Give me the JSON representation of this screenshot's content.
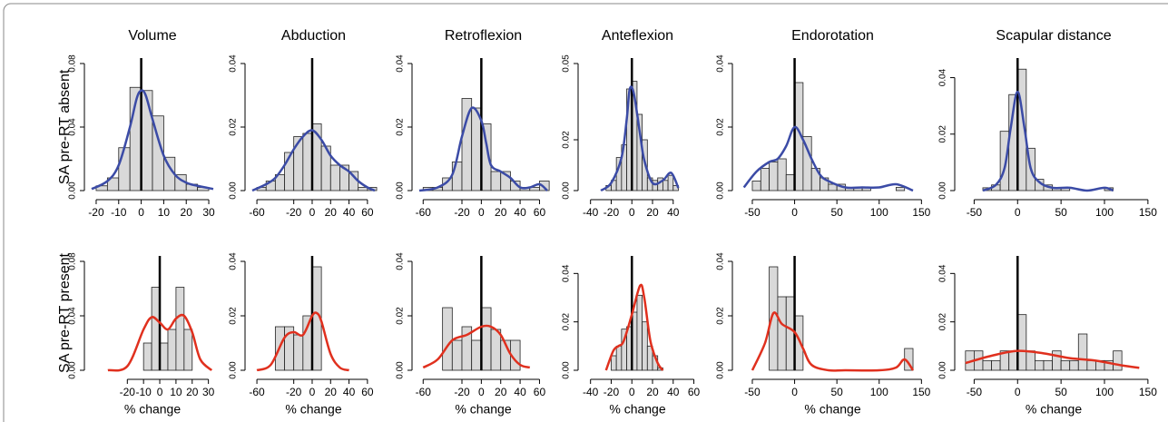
{
  "row_labels": [
    "SA pre-RT absent",
    "SA pre-RT present"
  ],
  "chart_data": [
    {
      "type": "histogram",
      "title": "Volume",
      "bins": [
        -20,
        -15,
        -10,
        -5,
        0,
        5,
        10,
        15,
        20,
        25,
        30
      ],
      "values": [
        0.003,
        0.008,
        0.027,
        0.065,
        0.063,
        0.047,
        0.021,
        0.01,
        0.004,
        0.002
      ],
      "density": {
        "x": [
          -22,
          -15,
          -10,
          -5,
          -2,
          0,
          2,
          5,
          10,
          15,
          20,
          25,
          32
        ],
        "y": [
          0.001,
          0.006,
          0.016,
          0.04,
          0.058,
          0.063,
          0.06,
          0.045,
          0.022,
          0.01,
          0.005,
          0.003,
          0.001
        ]
      },
      "color": "#3b4ba6",
      "vline": 0,
      "xlim": [
        -22,
        32
      ],
      "xticks": [
        -20,
        -10,
        0,
        10,
        20,
        30
      ],
      "ylim": [
        0,
        0.08
      ],
      "yticks": [
        {
          "value": 0,
          "label": "0.00"
        },
        0.04,
        0.08
      ]
    },
    {
      "type": "histogram",
      "title": "Abduction",
      "bins": [
        -60,
        -50,
        -40,
        -30,
        -20,
        -10,
        0,
        10,
        20,
        30,
        40,
        50,
        60,
        70
      ],
      "values": [
        0.001,
        0.003,
        0.005,
        0.012,
        0.017,
        0.018,
        0.021,
        0.014,
        0.008,
        0.008,
        0.006,
        0.001,
        0.001
      ],
      "density": {
        "x": [
          -65,
          -50,
          -40,
          -30,
          -20,
          -10,
          0,
          10,
          20,
          30,
          40,
          50,
          60,
          68
        ],
        "y": [
          0,
          0.002,
          0.004,
          0.008,
          0.013,
          0.017,
          0.019,
          0.016,
          0.011,
          0.008,
          0.006,
          0.003,
          0.001,
          0
        ]
      },
      "color": "#3b4ba6",
      "vline": 0,
      "xlim": [
        -65,
        68
      ],
      "xticks": [
        -60,
        -20,
        0,
        20,
        40,
        60
      ],
      "ylim": [
        0,
        0.04
      ],
      "yticks": [
        {
          "value": 0,
          "label": "0.00"
        },
        0.02,
        0.04
      ]
    },
    {
      "type": "histogram",
      "title": "Retroflexion",
      "bins": [
        -60,
        -50,
        -40,
        -30,
        -20,
        -10,
        0,
        10,
        20,
        30,
        40,
        50,
        60,
        70
      ],
      "values": [
        0.001,
        0.001,
        0.004,
        0.009,
        0.029,
        0.026,
        0.021,
        0.006,
        0.006,
        0.003,
        0.001,
        0.001,
        0.003
      ],
      "density": {
        "x": [
          -64,
          -45,
          -30,
          -20,
          -10,
          0,
          5,
          10,
          20,
          30,
          40,
          50,
          60,
          68
        ],
        "y": [
          0,
          0.001,
          0.005,
          0.017,
          0.026,
          0.022,
          0.015,
          0.008,
          0.006,
          0.004,
          0.001,
          0.001,
          0.002,
          0
        ]
      },
      "color": "#3b4ba6",
      "vline": 0,
      "xlim": [
        -64,
        68
      ],
      "xticks": [
        -60,
        -20,
        0,
        20,
        40,
        60
      ],
      "ylim": [
        0,
        0.04
      ],
      "yticks": [
        {
          "value": 0,
          "label": "0.00"
        },
        0.02,
        0.04
      ]
    },
    {
      "type": "histogram",
      "title": "Anteflexion",
      "bins": [
        -25,
        -20,
        -15,
        -10,
        -5,
        0,
        5,
        10,
        15,
        20,
        25,
        30,
        35,
        40,
        45
      ],
      "values": [
        0.002,
        0.004,
        0.013,
        0.018,
        0.04,
        0.043,
        0.03,
        0.02,
        0.005,
        0.004,
        0.005,
        0.004,
        0.006,
        0.002
      ],
      "density": {
        "x": [
          -30,
          -20,
          -10,
          -5,
          -2,
          2,
          8,
          12,
          20,
          30,
          38,
          45
        ],
        "y": [
          0,
          0.003,
          0.013,
          0.028,
          0.04,
          0.038,
          0.022,
          0.012,
          0.003,
          0.004,
          0.007,
          0.001
        ]
      },
      "color": "#3b4ba6",
      "vline": 0,
      "xlim": [
        -45,
        56
      ],
      "xticks": [
        -40,
        -20,
        0,
        20,
        40
      ],
      "ylim": [
        0,
        0.05
      ],
      "yticks": [
        {
          "value": 0,
          "label": "0.00"
        },
        0.02,
        0.05
      ]
    },
    {
      "type": "histogram",
      "title": "Endorotation",
      "bins": [
        -50,
        -40,
        -30,
        -20,
        -10,
        0,
        10,
        20,
        30,
        40,
        50,
        60,
        70,
        80,
        90,
        100,
        110,
        120,
        130,
        140
      ],
      "values": [
        0.003,
        0.007,
        0.009,
        0.01,
        0.005,
        0.034,
        0.017,
        0.007,
        0.004,
        0.002,
        0.002,
        0.001,
        0.001,
        0.001,
        0,
        0,
        0,
        0.001,
        0
      ],
      "density": {
        "x": [
          -60,
          -45,
          -30,
          -20,
          -10,
          0,
          10,
          20,
          30,
          40,
          60,
          80,
          100,
          120,
          140
        ],
        "y": [
          0.001,
          0.006,
          0.009,
          0.01,
          0.014,
          0.02,
          0.016,
          0.01,
          0.005,
          0.003,
          0.001,
          0.001,
          0.001,
          0.002,
          0
        ]
      },
      "color": "#3b4ba6",
      "vline": 0,
      "xlim": [
        -65,
        155
      ],
      "xticks": [
        -50,
        0,
        50,
        100,
        150
      ],
      "ylim": [
        0,
        0.04
      ],
      "yticks": [
        {
          "value": 0,
          "label": "0.00"
        },
        0.02,
        0.04
      ]
    },
    {
      "type": "histogram",
      "title": "Scapular distance",
      "bins": [
        -40,
        -30,
        -20,
        -10,
        0,
        10,
        20,
        30,
        40,
        50,
        60,
        70,
        80,
        90,
        100,
        110
      ],
      "values": [
        0.001,
        0.002,
        0.021,
        0.034,
        0.043,
        0.015,
        0.004,
        0.002,
        0.001,
        0.001,
        0,
        0,
        0,
        0,
        0.001
      ],
      "density": {
        "x": [
          -40,
          -25,
          -15,
          -8,
          0,
          8,
          15,
          25,
          40,
          60,
          80,
          100,
          110
        ],
        "y": [
          0,
          0.002,
          0.008,
          0.022,
          0.035,
          0.022,
          0.008,
          0.003,
          0.001,
          0.001,
          0,
          0.001,
          0
        ]
      },
      "color": "#3b4ba6",
      "vline": 0,
      "xlim": [
        -64,
        147
      ],
      "xticks": [
        -50,
        0,
        50,
        100,
        150
      ],
      "ylim": [
        0,
        0.045
      ],
      "yticks": [
        {
          "value": 0,
          "label": "0.00"
        },
        0.02,
        0.04
      ]
    },
    {
      "type": "histogram",
      "x_label": "% change",
      "bins": [
        -10,
        -5,
        0,
        5,
        10,
        15,
        20
      ],
      "values": [
        0.02,
        0.061,
        0.02,
        0.03,
        0.061,
        0.03
      ],
      "density": {
        "x": [
          -32,
          -20,
          -10,
          -5,
          0,
          5,
          10,
          15,
          20,
          25,
          32
        ],
        "y": [
          0,
          0.003,
          0.03,
          0.039,
          0.035,
          0.03,
          0.038,
          0.04,
          0.028,
          0.008,
          0
        ]
      },
      "color": "#e0301e",
      "vline": 0,
      "xlim": [
        -42,
        33
      ],
      "xticks": [
        -20,
        -10,
        0,
        10,
        20,
        30
      ],
      "ylim": [
        0,
        0.08
      ],
      "yticks": [
        {
          "value": 0,
          "label": "0.00"
        },
        0.04,
        0.08
      ]
    },
    {
      "type": "histogram",
      "x_label": "% change",
      "bins": [
        -40,
        -30,
        -20,
        -10,
        0,
        10
      ],
      "values": [
        0.016,
        0.016,
        0.013,
        0.02,
        0.038
      ],
      "density": {
        "x": [
          -60,
          -45,
          -30,
          -20,
          -10,
          0,
          5,
          10,
          20,
          30,
          40
        ],
        "y": [
          0,
          0.002,
          0.012,
          0.014,
          0.013,
          0.02,
          0.021,
          0.018,
          0.006,
          0.001,
          0
        ]
      },
      "color": "#e0301e",
      "vline": 0,
      "xlim": [
        -65,
        68
      ],
      "xticks": [
        -60,
        -20,
        0,
        20,
        40,
        60
      ],
      "ylim": [
        0,
        0.04
      ],
      "yticks": [
        {
          "value": 0,
          "label": "0.00"
        },
        0.02,
        0.04
      ]
    },
    {
      "type": "histogram",
      "x_label": "% change",
      "bins": [
        -40,
        -30,
        -20,
        -10,
        0,
        10,
        20,
        30,
        40
      ],
      "values": [
        0.023,
        0.011,
        0.016,
        0.011,
        0.023,
        0.015,
        0.011,
        0.011
      ],
      "density": {
        "x": [
          -60,
          -45,
          -30,
          -15,
          0,
          10,
          20,
          30,
          40,
          50
        ],
        "y": [
          0.001,
          0.004,
          0.011,
          0.013,
          0.016,
          0.016,
          0.013,
          0.006,
          0.002,
          0.001
        ]
      },
      "color": "#e0301e",
      "vline": 0,
      "xlim": [
        -64,
        68
      ],
      "xticks": [
        -60,
        -20,
        0,
        20,
        40,
        60
      ],
      "ylim": [
        0,
        0.04
      ],
      "yticks": [
        {
          "value": 0,
          "label": "0.00"
        },
        0.02,
        0.04
      ]
    },
    {
      "type": "histogram",
      "x_label": "% change",
      "bins": [
        -20,
        -15,
        -10,
        -5,
        0,
        5,
        10,
        15,
        20,
        25,
        30
      ],
      "values": [
        0.006,
        0.01,
        0.017,
        0.018,
        0.024,
        0.031,
        0.02,
        0.01,
        0.006,
        0.001
      ],
      "density": {
        "x": [
          -25,
          -18,
          -13,
          -8,
          0,
          8,
          12,
          18,
          25,
          30
        ],
        "y": [
          0,
          0.008,
          0.01,
          0.012,
          0.023,
          0.035,
          0.03,
          0.012,
          0.003,
          0
        ]
      },
      "color": "#e0301e",
      "vline": 0,
      "xlim": [
        -45,
        56
      ],
      "xticks": [
        -40,
        -20,
        0,
        20,
        40,
        60
      ],
      "ylim": [
        0,
        0.045
      ],
      "yticks": [
        {
          "value": 0,
          "label": "0.00"
        },
        0.02,
        0.04
      ]
    },
    {
      "type": "histogram",
      "x_label": "% change",
      "bins": [
        -30,
        -20,
        -10,
        0,
        10,
        20,
        30,
        40,
        50,
        60,
        70,
        80,
        90,
        100,
        110,
        120,
        130,
        140
      ],
      "values": [
        0.038,
        0.027,
        0.027,
        0.02,
        0,
        0,
        0,
        0,
        0,
        0,
        0,
        0,
        0,
        0,
        0,
        0,
        0.008
      ],
      "density": {
        "x": [
          -50,
          -35,
          -25,
          -15,
          0,
          10,
          20,
          40,
          60,
          100,
          120,
          130,
          140
        ],
        "y": [
          0,
          0.01,
          0.021,
          0.017,
          0.014,
          0.008,
          0.002,
          0,
          0,
          0,
          0.001,
          0.004,
          0
        ]
      },
      "color": "#e0301e",
      "vline": 0,
      "xlim": [
        -65,
        155
      ],
      "xticks": [
        -50,
        0,
        50,
        100,
        150
      ],
      "ylim": [
        0,
        0.04
      ],
      "yticks": [
        {
          "value": 0,
          "label": "0.00"
        },
        0.02,
        0.04
      ]
    },
    {
      "type": "histogram",
      "x_label": "% change",
      "bins": [
        -60,
        -50,
        -40,
        -30,
        -20,
        -10,
        0,
        10,
        20,
        30,
        40,
        50,
        60,
        70,
        80,
        90,
        100,
        110,
        120
      ],
      "values": [
        0.008,
        0.008,
        0.004,
        0.004,
        0.008,
        0.008,
        0.023,
        0.008,
        0.004,
        0.004,
        0.008,
        0.004,
        0.004,
        0.015,
        0.004,
        0.004,
        0.004,
        0.008
      ],
      "density": {
        "x": [
          -60,
          -30,
          0,
          30,
          60,
          90,
          120,
          140
        ],
        "y": [
          0.003,
          0.006,
          0.008,
          0.007,
          0.005,
          0.004,
          0.002,
          0.001
        ]
      },
      "color": "#e0301e",
      "vline": 0,
      "xlim": [
        -64,
        147
      ],
      "xticks": [
        -50,
        0,
        50,
        100,
        150
      ],
      "ylim": [
        0,
        0.045
      ],
      "yticks": [
        {
          "value": 0,
          "label": "0.00"
        },
        0.02,
        0.04
      ]
    }
  ]
}
